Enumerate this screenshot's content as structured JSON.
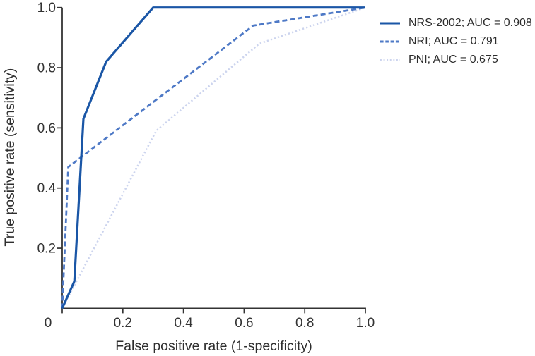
{
  "style": {
    "background": "#ffffff",
    "axis_color": "#333333",
    "tick_label_color": "#333333",
    "title_color": "#2e2e2e",
    "legend_text_color": "#2d2d2d"
  },
  "chart_data": {
    "type": "line",
    "subtype": "roc-curve",
    "title": "",
    "xlabel": "False positive rate (1-specificity)",
    "ylabel": "True positive rate (sensitivity)",
    "xlim": [
      0,
      1
    ],
    "ylim": [
      0,
      1
    ],
    "grid": false,
    "legend_position": "outside-top-right",
    "x_ticks": {
      "values": [
        0,
        0.2,
        0.4,
        0.6,
        0.8,
        1.0
      ],
      "labels": [
        "0",
        "0.2",
        "0.4",
        "0.6",
        "0.8",
        "1.0"
      ]
    },
    "y_ticks": {
      "values": [
        0.2,
        0.4,
        0.6,
        0.8,
        1.0
      ],
      "labels": [
        "0.2",
        "0.4",
        "0.6",
        "0.8",
        "1.0"
      ]
    },
    "series": [
      {
        "name": "NRS-2002",
        "auc": 0.908,
        "legend_label": "NRS-2002; AUC = 0.908",
        "style": "solid",
        "color": "#1a56a6",
        "points": [
          [
            0,
            0
          ],
          [
            0.04,
            0.09
          ],
          [
            0.07,
            0.63
          ],
          [
            0.145,
            0.82
          ],
          [
            0.3,
            1.0
          ],
          [
            1.0,
            1.0
          ]
        ]
      },
      {
        "name": "NRI",
        "auc": 0.791,
        "legend_label": "NRI; AUC = 0.791",
        "style": "dashed",
        "color": "#4e79c6",
        "points": [
          [
            0,
            0
          ],
          [
            0.02,
            0.47
          ],
          [
            0.63,
            0.94
          ],
          [
            1.0,
            1.0
          ]
        ]
      },
      {
        "name": "PNI",
        "auc": 0.675,
        "legend_label": "PNI; AUC = 0.675",
        "style": "dotted",
        "color": "#ccd4ee",
        "points": [
          [
            0,
            0
          ],
          [
            0.31,
            0.59
          ],
          [
            0.65,
            0.88
          ],
          [
            1.0,
            1.0
          ]
        ]
      }
    ]
  }
}
